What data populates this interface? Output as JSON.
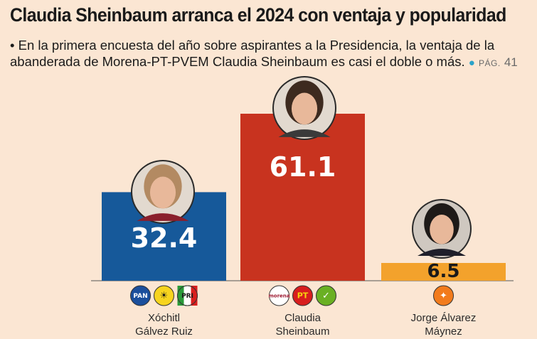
{
  "header": {
    "title": "Claudia Sheinbaum arranca el 2024 con ventaja y popularidad",
    "bullet": "•",
    "subtitle_line1": "En la primera encuesta del año sobre aspirantes a la Presidencia, la ventaja de la",
    "subtitle_line2": "abanderada de Morena-PT-PVEM Claudia Sheinbaum es casi el doble o más.",
    "page_prefix": "PÁG.",
    "page_number": "41"
  },
  "colors": {
    "background": "#fbe6d3",
    "bar_blue": "#16599a",
    "bar_red": "#c8331f",
    "bar_orange": "#f3a22c",
    "axis": "#555555"
  },
  "chart_data": {
    "type": "bar",
    "categories": [
      "Xóchitl Gálvez Ruiz",
      "Claudia Sheinbaum",
      "Jorge Álvarez Máynez"
    ],
    "values": [
      32.4,
      61.1,
      6.5
    ],
    "value_labels": [
      "32.4",
      "61.1",
      "6.5"
    ],
    "label_lines": [
      [
        "Xóchitl",
        "Gálvez Ruiz"
      ],
      [
        "Claudia",
        "Sheinbaum"
      ],
      [
        "Jorge Álvarez",
        "Máynez"
      ]
    ],
    "bar_colors": [
      "#16599a",
      "#c8331f",
      "#f3a22c"
    ],
    "party_logos": [
      [
        "PAN",
        "PRD",
        "PRI"
      ],
      [
        "morena",
        "PT",
        "PVEM"
      ],
      [
        "MC"
      ]
    ],
    "ylim": [
      0,
      61.1
    ],
    "grid": false
  }
}
